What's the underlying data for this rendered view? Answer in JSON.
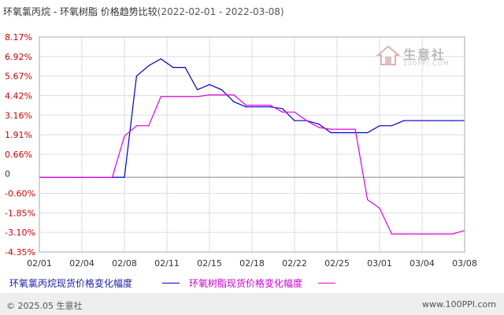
{
  "title": {
    "main": "环氧氯丙烷 - 环氧树脂 价格趋势比较",
    "range": "(2022-02-01 - 2022-03-08)"
  },
  "logo": {
    "name": "生意社",
    "url": "100PPI.COM"
  },
  "footer": {
    "copyright": "© 2025.05 生意社",
    "site": "www.100PPI.com"
  },
  "colors": {
    "series0": "#0000cc",
    "series1": "#e000e0",
    "zero": "#888888",
    "grid": "#dddddd"
  },
  "chart_data": {
    "type": "line",
    "title": "环氧氯丙烷 - 环氧树脂 价格趋势比较(2022-02-01 - 2022-03-08)",
    "xlabel": "",
    "ylabel": "",
    "x_tick_labels": [
      "02/01",
      "02/04",
      "02/08",
      "02/11",
      "02/15",
      "02/18",
      "02/22",
      "02/25",
      "03/01",
      "03/04",
      "03/08"
    ],
    "y_tick_labels": [
      "8.17%",
      "6.92%",
      "5.67%",
      "4.42%",
      "3.16%",
      "1.91%",
      "0.66%",
      "0",
      "-0.60%",
      "-1.85%",
      "-3.10%",
      "-4.35%"
    ],
    "ylim": [
      -4.35,
      8.17
    ],
    "grid": true,
    "legend_position": "bottom",
    "x_dates": [
      "02/01",
      "02/02",
      "02/03",
      "02/04",
      "02/05",
      "02/06",
      "02/07",
      "02/08",
      "02/09",
      "02/10",
      "02/11",
      "02/12",
      "02/13",
      "02/14",
      "02/15",
      "02/16",
      "02/17",
      "02/18",
      "02/19",
      "02/20",
      "02/21",
      "02/22",
      "02/23",
      "02/24",
      "02/25",
      "02/26",
      "02/27",
      "02/28",
      "03/01",
      "03/02",
      "03/03",
      "03/04",
      "03/05",
      "03/06",
      "03/07",
      "03/08"
    ],
    "series": [
      {
        "name": "环氧氯丙烷现货价格变化幅度",
        "values": [
          0,
          0,
          0,
          0,
          0,
          0,
          0,
          0,
          5.9,
          6.5,
          6.9,
          6.4,
          6.4,
          5.1,
          5.4,
          5.1,
          4.4,
          4.1,
          4.1,
          4.1,
          4.0,
          3.3,
          3.3,
          3.1,
          2.6,
          2.6,
          2.6,
          2.6,
          3.0,
          3.0,
          3.3,
          3.3,
          3.3,
          3.3,
          3.3,
          3.3
        ]
      },
      {
        "name": "环氧树脂现货价格变化幅度",
        "values": [
          0,
          0,
          0,
          0,
          0,
          0,
          0,
          2.4,
          3.0,
          3.0,
          4.7,
          4.7,
          4.7,
          4.7,
          4.8,
          4.8,
          4.8,
          4.2,
          4.2,
          4.2,
          3.8,
          3.8,
          3.3,
          2.9,
          2.8,
          2.8,
          2.8,
          -1.3,
          -1.8,
          -3.3,
          -3.3,
          -3.3,
          -3.3,
          -3.3,
          -3.3,
          -3.1
        ]
      }
    ]
  }
}
